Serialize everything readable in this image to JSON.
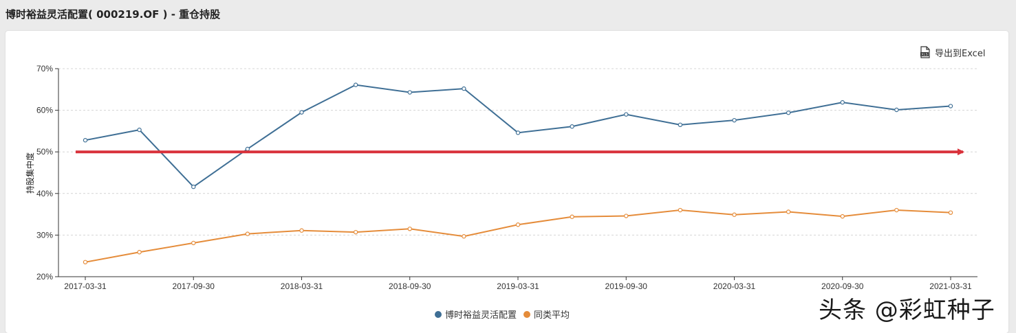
{
  "page": {
    "title": "博时裕益灵活配置( 000219.OF ) - 重仓持股"
  },
  "toolbar": {
    "export_label": "导出到Excel",
    "export_icon": "xls-file-icon"
  },
  "watermark": "头条 @彩虹种子",
  "colors": {
    "series_fund": "#3f6f95",
    "series_avg": "#e58c3a",
    "arrow": "#d9313a",
    "grid": "#d4d4d4"
  },
  "chart_data": {
    "type": "line",
    "ylabel": "持股集中度",
    "ylim": [
      20,
      70
    ],
    "yticks": [
      "20%",
      "30%",
      "40%",
      "50%",
      "60%",
      "70%"
    ],
    "x": [
      "2017-03-31",
      "2017-06-30",
      "2017-09-30",
      "2017-12-31",
      "2018-03-31",
      "2018-06-30",
      "2018-09-30",
      "2018-12-31",
      "2019-03-31",
      "2019-06-30",
      "2019-09-30",
      "2019-12-31",
      "2020-03-31",
      "2020-06-30",
      "2020-09-30",
      "2020-12-31",
      "2021-03-31"
    ],
    "xtick_labels": [
      "2017-03-31",
      "2017-09-30",
      "2018-03-31",
      "2018-09-30",
      "2019-03-31",
      "2019-09-30",
      "2020-03-31",
      "2020-09-30",
      "2021-03-31"
    ],
    "grid": true,
    "legend_position": "bottom-center",
    "series": [
      {
        "name": "博时裕益灵活配置",
        "values": [
          52.8,
          55.3,
          41.6,
          50.7,
          59.5,
          66.1,
          64.3,
          65.2,
          54.6,
          56.1,
          59.0,
          56.5,
          57.6,
          59.4,
          61.9,
          60.1,
          61.0
        ]
      },
      {
        "name": "同类平均",
        "values": [
          23.5,
          25.9,
          28.1,
          30.3,
          31.1,
          30.7,
          31.5,
          29.7,
          32.5,
          34.4,
          34.6,
          36.0,
          34.9,
          35.6,
          34.5,
          36.0,
          35.4
        ]
      }
    ],
    "annotation": {
      "type": "horizontal-arrow",
      "value": 50
    }
  }
}
